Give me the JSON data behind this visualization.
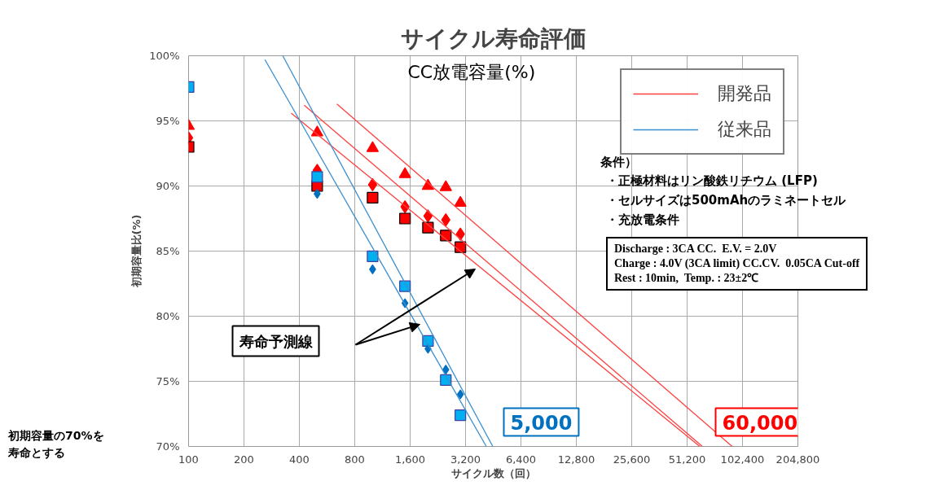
{
  "chart_data": {
    "type": "scatter",
    "title": "サイクル寿命評価",
    "xlabel": "サイクル数（回）",
    "ylabel": "初期容量比(%)",
    "log": "x",
    "grid": true,
    "legend": "top right",
    "xlim": [
      100,
      204800
    ],
    "xticks": [
      100,
      200,
      400,
      800,
      {
        "value": 1600,
        "label": "1,600"
      },
      {
        "value": 3200,
        "label": "3,200"
      },
      {
        "value": 6400,
        "label": "6,400"
      },
      {
        "value": 12800,
        "label": "12,800"
      },
      {
        "value": 25600,
        "label": "25,600"
      },
      {
        "value": 51200,
        "label": "51,200"
      },
      {
        "value": 102400,
        "label": "102,400"
      },
      {
        "value": 204800,
        "label": "204,800"
      }
    ],
    "ylim": [
      70,
      100
    ],
    "yticks": [
      {
        "value": 70,
        "label": "70%"
      },
      {
        "value": 75,
        "label": "75%"
      },
      {
        "value": 80,
        "label": "80%"
      },
      {
        "value": 85,
        "label": "85%"
      },
      {
        "value": 90,
        "label": "90%"
      },
      {
        "value": 95,
        "label": "95%"
      },
      {
        "value": 100,
        "label": "100%"
      }
    ],
    "x": [
      100,
      500,
      1000,
      1500,
      2000,
      2500,
      3000
    ],
    "series": [
      {
        "marker": "triangle",
        "color": "#ff0000",
        "values": [
          94.6,
          94.1,
          92.9,
          90.9,
          90.0,
          89.9,
          88.7
        ]
      },
      {
        "marker": "diamond",
        "color": "#ff0000",
        "values": [
          93.7,
          91.2,
          90.1,
          88.4,
          87.7,
          87.4,
          86.3
        ]
      },
      {
        "marker": "square",
        "color": "#ff0000",
        "values": [
          93.0,
          90.0,
          89.1,
          87.5,
          86.8,
          86.2,
          85.3
        ]
      },
      {
        "marker": "square",
        "color": "#00b0f0",
        "values": [
          97.6,
          90.7,
          84.6,
          82.3,
          78.1,
          75.1,
          72.4
        ]
      },
      {
        "marker": "diamond",
        "color": "#0070c0",
        "values": [
          null,
          89.4,
          83.6,
          81.0,
          77.5,
          75.9,
          74.0
        ]
      },
      {
        "type": "line",
        "name": "開発品",
        "color": "#ff4040",
        "x": [
          640,
          90000
        ],
        "values": [
          96.3,
          70
        ]
      },
      {
        "type": "line",
        "color": "#ff4040",
        "x": [
          425,
          62000
        ],
        "values": [
          96.2,
          70
        ]
      },
      {
        "type": "line",
        "color": "#ff4040",
        "x": [
          361,
          60000
        ],
        "values": [
          95.6,
          70
        ]
      },
      {
        "type": "line",
        "name": "従来品",
        "color": "#3a8fd0",
        "x": [
          325,
          4500
        ],
        "values": [
          100,
          70
        ]
      },
      {
        "type": "line",
        "color": "#3a8fd0",
        "x": [
          260,
          4150
        ],
        "values": [
          99.7,
          70
        ]
      }
    ],
    "annotations": [
      "CC放電容量(%)",
      "条件）",
      "・正極材料はリン酸鉄リチウム (LFP)",
      "・セルサイズは500mAhのラミネートセル",
      "・充放電条件",
      "Discharge : 3CA CC.  E.V. = 2.0V",
      "Charge : 4.0V (3CA limit) CC.CV.  0.05CA Cut-off",
      "Rest : 10min,  Temp. : 23±2℃",
      "寿命予測線",
      "5,000",
      "60,000",
      "初期容量の70%を",
      "寿命とする"
    ]
  }
}
